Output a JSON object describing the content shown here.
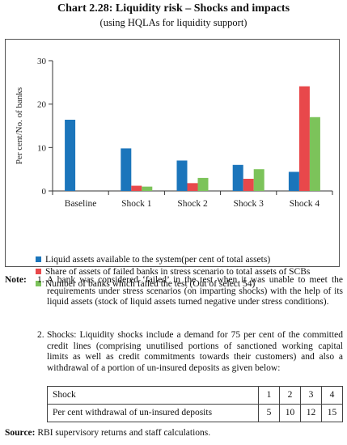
{
  "title": "Chart 2.28: Liquidity risk – Shocks and impacts",
  "subtitle": "(using HQLAs for liquidity support)",
  "chart_data": {
    "type": "bar",
    "categories": [
      "Baseline",
      "Shock 1",
      "Shock 2",
      "Shock 3",
      "Shock 4"
    ],
    "ylabel": "Per cent/No. of banks",
    "ylim": [
      0,
      30
    ],
    "yticks": [
      "0",
      "10",
      "20",
      "30"
    ],
    "grid": false,
    "legend_position": "bottom",
    "series": [
      {
        "name": "Liquid assets available to the system(per cent of total assets)",
        "color": "#1b75bb",
        "values": [
          16.4,
          9.8,
          7.0,
          6.0,
          4.4
        ]
      },
      {
        "name": "Share of assets of failed banks in stress scenario to total assets of SCBs",
        "color": "#e8484b",
        "values": [
          null,
          1.2,
          1.8,
          2.8,
          24.1
        ]
      },
      {
        "name": "Number of banks which  failed   the test (Out of select 54)",
        "color": "#7cc35a",
        "values": [
          null,
          1.0,
          3.0,
          5.0,
          17.0
        ]
      }
    ]
  },
  "notes": {
    "label": "Note:",
    "items": [
      {
        "num": "1.",
        "text": "A bank was considered ‘failed’ in the test when it was unable to meet the requirements under stress scenarios (on imparting shocks) with the help of its liquid assets (stock of liquid assets turned negative under stress conditions)."
      },
      {
        "num": "2.",
        "text": "Shocks: Liquidity shocks include a demand for 75 per cent of the committed credit lines (comprising unutilised portions of sanctioned working capital limits as well as credit commitments towards their customers) and also a withdrawal of a portion of un-insured deposits as given below:"
      }
    ]
  },
  "shock_table": {
    "rows": [
      {
        "label": "Shock",
        "values": [
          "1",
          "2",
          "3",
          "4"
        ]
      },
      {
        "label": "Per cent withdrawal of un-insured deposits",
        "values": [
          "5",
          "10",
          "12",
          "15"
        ]
      }
    ]
  },
  "source": {
    "label": "Source:",
    "text": "RBI supervisory returns and staff calculations."
  }
}
